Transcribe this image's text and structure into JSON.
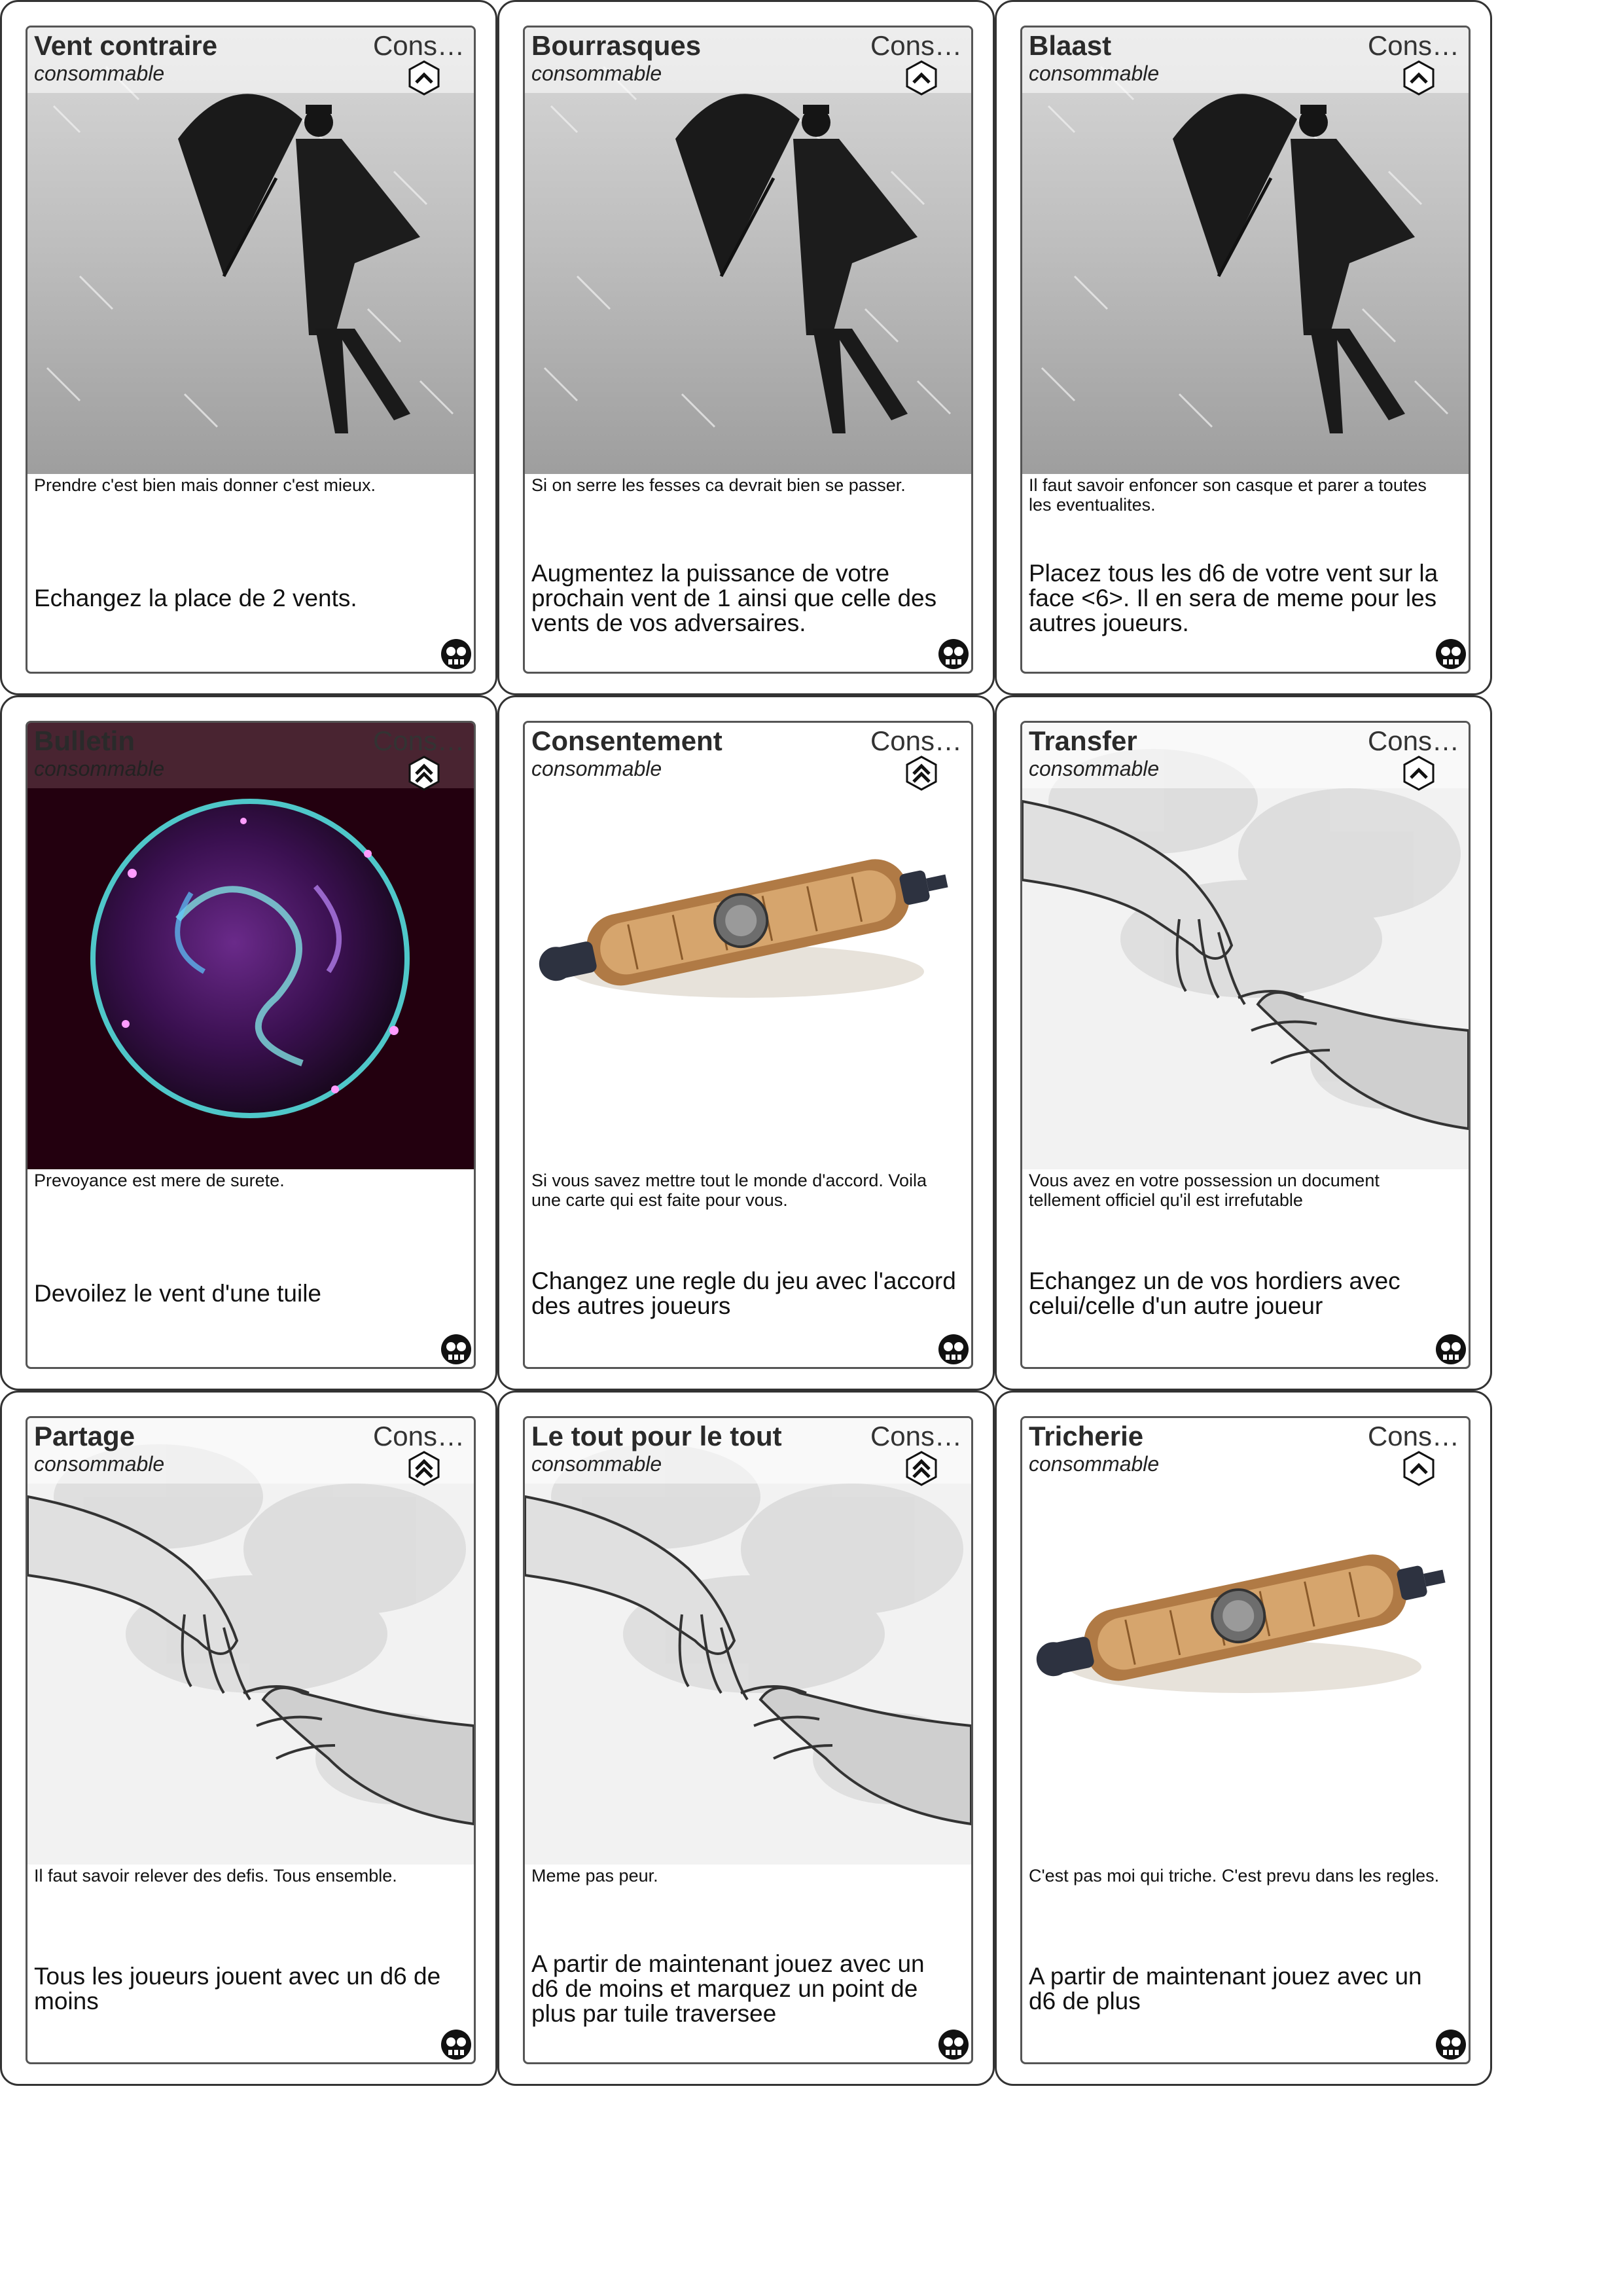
{
  "cards": [
    {
      "title": "Vent contraire",
      "category": "Cons…",
      "type": "consommable",
      "rank": "chevron-single-icon",
      "art": "umbrella-man-in-rain",
      "flavor": "Prendre c'est bien mais donner c'est mieux.",
      "effect": "Echangez la place de 2 vents."
    },
    {
      "title": "Bourrasques",
      "category": "Cons…",
      "type": "consommable",
      "rank": "chevron-single-icon",
      "art": "umbrella-man-in-rain",
      "flavor": "Si on serre les fesses ca devrait bien se passer.",
      "effect": "Augmentez la puissance de votre prochain vent de 1 ainsi que celle des vents de vos adversaires."
    },
    {
      "title": "Blaast",
      "category": "Cons…",
      "type": "consommable",
      "rank": "chevron-single-icon",
      "art": "umbrella-man-in-rain",
      "flavor": "Il faut savoir enfoncer son casque et parer a toutes les eventualites.",
      "effect": "Placez tous les d6 de votre vent sur la face <6>. Il en sera de meme pour les autres joueurs."
    },
    {
      "title": "Bulletin",
      "category": "Cons…",
      "type": "consommable",
      "rank": "chevron-double-icon",
      "art": "crystal-orb",
      "flavor": "Prevoyance est mere de surete.",
      "effect": "Devoilez le vent d'une tuile"
    },
    {
      "title": "Consentement",
      "category": "Cons…",
      "type": "consommable",
      "rank": "chevron-double-icon",
      "art": "parchment-scroll",
      "flavor": "Si vous savez mettre tout le monde d'accord. Voila une carte qui est faite pour vous.",
      "effect": "Changez une regle du jeu avec l'accord des autres joueurs"
    },
    {
      "title": "Transfer",
      "category": "Cons…",
      "type": "consommable",
      "rank": "chevron-single-icon",
      "art": "two-hands",
      "flavor": "Vous avez en votre possession un document tellement officiel qu'il est irrefutable",
      "effect": "Echangez un de vos hordiers avec celui/celle d'un autre joueur"
    },
    {
      "title": "Partage",
      "category": "Cons…",
      "type": "consommable",
      "rank": "chevron-double-icon",
      "art": "two-hands",
      "flavor": "Il faut savoir relever des defis. Tous ensemble.",
      "effect": "Tous les joueurs jouent avec un d6 de moins"
    },
    {
      "title": "Le tout pour le tout",
      "category": "Cons…",
      "type": "consommable",
      "rank": "chevron-double-icon",
      "art": "two-hands",
      "flavor": "Meme pas peur.",
      "effect": "A partir de maintenant jouez avec un d6 de moins et marquez un point de plus par tuile traversee"
    },
    {
      "title": "Tricherie",
      "category": "Cons…",
      "type": "consommable",
      "rank": "chevron-single-icon",
      "art": "parchment-scroll",
      "flavor": "C'est pas moi qui triche. C'est prevu dans les regles.",
      "effect": "A partir de maintenant jouez avec un d6 de plus"
    }
  ]
}
